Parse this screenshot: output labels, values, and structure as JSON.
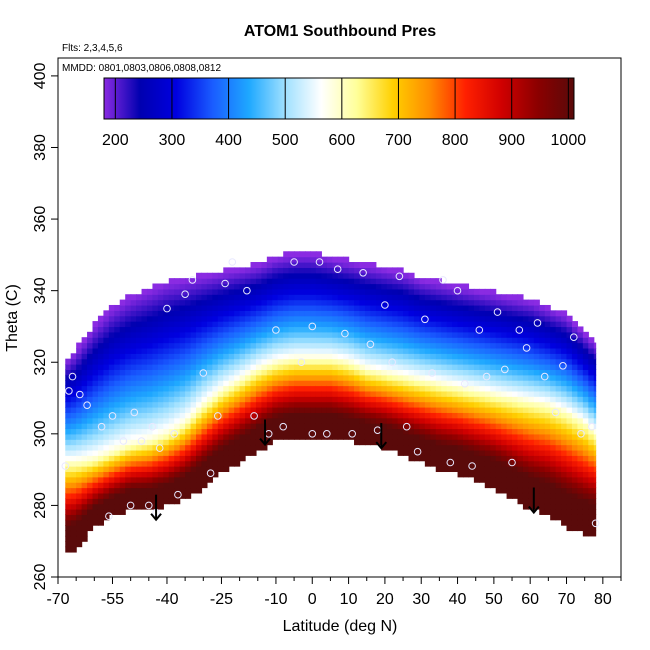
{
  "chart_data": {
    "type": "heatmap",
    "title": "ATOM1 Southbound Pres",
    "annotations": [
      "Flts: 2,3,4,5,6",
      "MMDD: 0801,0803,0806,0808,0812"
    ],
    "xlabel": "Latitude (deg N)",
    "ylabel": "Theta (C)",
    "xlim": [
      -70,
      85
    ],
    "ylim": [
      260,
      405
    ],
    "x_ticks": [
      -70,
      -55,
      -40,
      -25,
      -10,
      0,
      10,
      20,
      30,
      40,
      50,
      60,
      70,
      80
    ],
    "x_tick_labels": [
      "-70",
      "-55",
      "-40",
      "-25",
      "-10",
      "0",
      "10",
      "20",
      "30",
      "40",
      "50",
      "60",
      "70",
      "80"
    ],
    "x_minor_ticks": [
      -65,
      -60,
      -50,
      -45,
      -35,
      -30,
      -20,
      -15,
      -5,
      5,
      15,
      25,
      35,
      45,
      55,
      65,
      75,
      85
    ],
    "y_ticks": [
      260,
      280,
      300,
      320,
      340,
      360,
      380,
      400
    ],
    "y_tick_labels": [
      "260",
      "280",
      "300",
      "320",
      "340",
      "360",
      "380",
      "400"
    ],
    "colorbar": {
      "min": 180,
      "max": 1010,
      "ticks": [
        200,
        300,
        400,
        500,
        600,
        700,
        800,
        900,
        1000
      ],
      "tick_labels": [
        "200",
        "300",
        "400",
        "500",
        "600",
        "700",
        "800",
        "900",
        "1000"
      ],
      "colors": [
        "#8a2be2",
        "#0000b0",
        "#0000e0",
        "#1a5cff",
        "#1ea8ff",
        "#9fe0ff",
        "#ffffff",
        "#ffff99",
        "#ffd000",
        "#ff8c00",
        "#ff2000",
        "#d00000",
        "#8b0000",
        "#5a0a0a"
      ]
    },
    "field": {
      "description": "pressure (hPa) as a function of latitude and theta",
      "lat_edges": [
        -68,
        -65,
        -60,
        -55,
        -50,
        -45,
        -40,
        -35,
        -30,
        -25,
        -20,
        -15,
        -10,
        -5,
        0,
        5,
        10,
        15,
        20,
        25,
        30,
        35,
        40,
        45,
        50,
        55,
        60,
        65,
        70,
        75,
        78
      ],
      "theta_top": [
        320,
        323,
        330,
        335,
        338,
        340,
        342,
        343,
        344,
        345,
        346,
        347,
        349,
        350,
        350,
        349,
        348,
        347,
        346,
        345,
        343,
        342,
        341,
        340,
        339,
        338,
        337,
        335,
        333,
        328,
        325
      ],
      "theta_bottom": [
        266,
        268,
        274,
        277,
        279,
        279,
        280,
        282,
        285,
        289,
        292,
        295,
        298,
        299,
        299,
        299,
        298,
        297,
        296,
        294,
        292,
        290,
        289,
        287,
        285,
        282,
        279,
        277,
        274,
        272,
        272
      ],
      "theta_600hPa": [
        292,
        292,
        293,
        295,
        297,
        298,
        300,
        303,
        308,
        312,
        315,
        318,
        320,
        321,
        321,
        321,
        320,
        318,
        317,
        316,
        315,
        314,
        313,
        312,
        311,
        310,
        309,
        308,
        306,
        303,
        300
      ],
      "gradient_width_theta": 25
    },
    "observation_points": [
      {
        "lat": -68,
        "theta": 291
      },
      {
        "lat": -67,
        "theta": 312
      },
      {
        "lat": -66,
        "theta": 316
      },
      {
        "lat": -64,
        "theta": 311
      },
      {
        "lat": -62,
        "theta": 308
      },
      {
        "lat": -58,
        "theta": 302
      },
      {
        "lat": -56,
        "theta": 277
      },
      {
        "lat": -55,
        "theta": 305
      },
      {
        "lat": -52,
        "theta": 298
      },
      {
        "lat": -50,
        "theta": 280
      },
      {
        "lat": -49,
        "theta": 306
      },
      {
        "lat": -47,
        "theta": 298
      },
      {
        "lat": -45,
        "theta": 280
      },
      {
        "lat": -44,
        "theta": 302
      },
      {
        "lat": -43,
        "theta": 278
      },
      {
        "lat": -42,
        "theta": 296
      },
      {
        "lat": -40,
        "theta": 335
      },
      {
        "lat": -38,
        "theta": 300
      },
      {
        "lat": -37,
        "theta": 283
      },
      {
        "lat": -35,
        "theta": 339
      },
      {
        "lat": -33,
        "theta": 343
      },
      {
        "lat": -30,
        "theta": 317
      },
      {
        "lat": -28,
        "theta": 289
      },
      {
        "lat": -26,
        "theta": 305
      },
      {
        "lat": -24,
        "theta": 342
      },
      {
        "lat": -22,
        "theta": 348
      },
      {
        "lat": -18,
        "theta": 340
      },
      {
        "lat": -16,
        "theta": 305
      },
      {
        "lat": -12,
        "theta": 300
      },
      {
        "lat": -10,
        "theta": 329
      },
      {
        "lat": -8,
        "theta": 302
      },
      {
        "lat": -5,
        "theta": 348
      },
      {
        "lat": -3,
        "theta": 320
      },
      {
        "lat": 0,
        "theta": 330
      },
      {
        "lat": 0,
        "theta": 300
      },
      {
        "lat": 2,
        "theta": 348
      },
      {
        "lat": 4,
        "theta": 300
      },
      {
        "lat": 7,
        "theta": 346
      },
      {
        "lat": 9,
        "theta": 328
      },
      {
        "lat": 11,
        "theta": 300
      },
      {
        "lat": 14,
        "theta": 345
      },
      {
        "lat": 16,
        "theta": 325
      },
      {
        "lat": 18,
        "theta": 301
      },
      {
        "lat": 20,
        "theta": 336
      },
      {
        "lat": 22,
        "theta": 320
      },
      {
        "lat": 24,
        "theta": 344
      },
      {
        "lat": 26,
        "theta": 302
      },
      {
        "lat": 29,
        "theta": 295
      },
      {
        "lat": 31,
        "theta": 332
      },
      {
        "lat": 33,
        "theta": 317
      },
      {
        "lat": 36,
        "theta": 343
      },
      {
        "lat": 38,
        "theta": 292
      },
      {
        "lat": 40,
        "theta": 340
      },
      {
        "lat": 42,
        "theta": 314
      },
      {
        "lat": 44,
        "theta": 291
      },
      {
        "lat": 46,
        "theta": 329
      },
      {
        "lat": 48,
        "theta": 316
      },
      {
        "lat": 51,
        "theta": 334
      },
      {
        "lat": 53,
        "theta": 318
      },
      {
        "lat": 55,
        "theta": 292
      },
      {
        "lat": 57,
        "theta": 329
      },
      {
        "lat": 59,
        "theta": 324
      },
      {
        "lat": 62,
        "theta": 331
      },
      {
        "lat": 64,
        "theta": 316
      },
      {
        "lat": 67,
        "theta": 306
      },
      {
        "lat": 69,
        "theta": 319
      },
      {
        "lat": 72,
        "theta": 327
      },
      {
        "lat": 74,
        "theta": 300
      },
      {
        "lat": 77,
        "theta": 302
      },
      {
        "lat": 78,
        "theta": 275
      }
    ],
    "arrows": [
      {
        "lat": -43,
        "theta_from": 283,
        "theta_to": 276
      },
      {
        "lat": -13,
        "theta_from": 304,
        "theta_to": 297
      },
      {
        "lat": 19,
        "theta_from": 303,
        "theta_to": 296
      },
      {
        "lat": 61,
        "theta_from": 285,
        "theta_to": 278
      }
    ]
  }
}
